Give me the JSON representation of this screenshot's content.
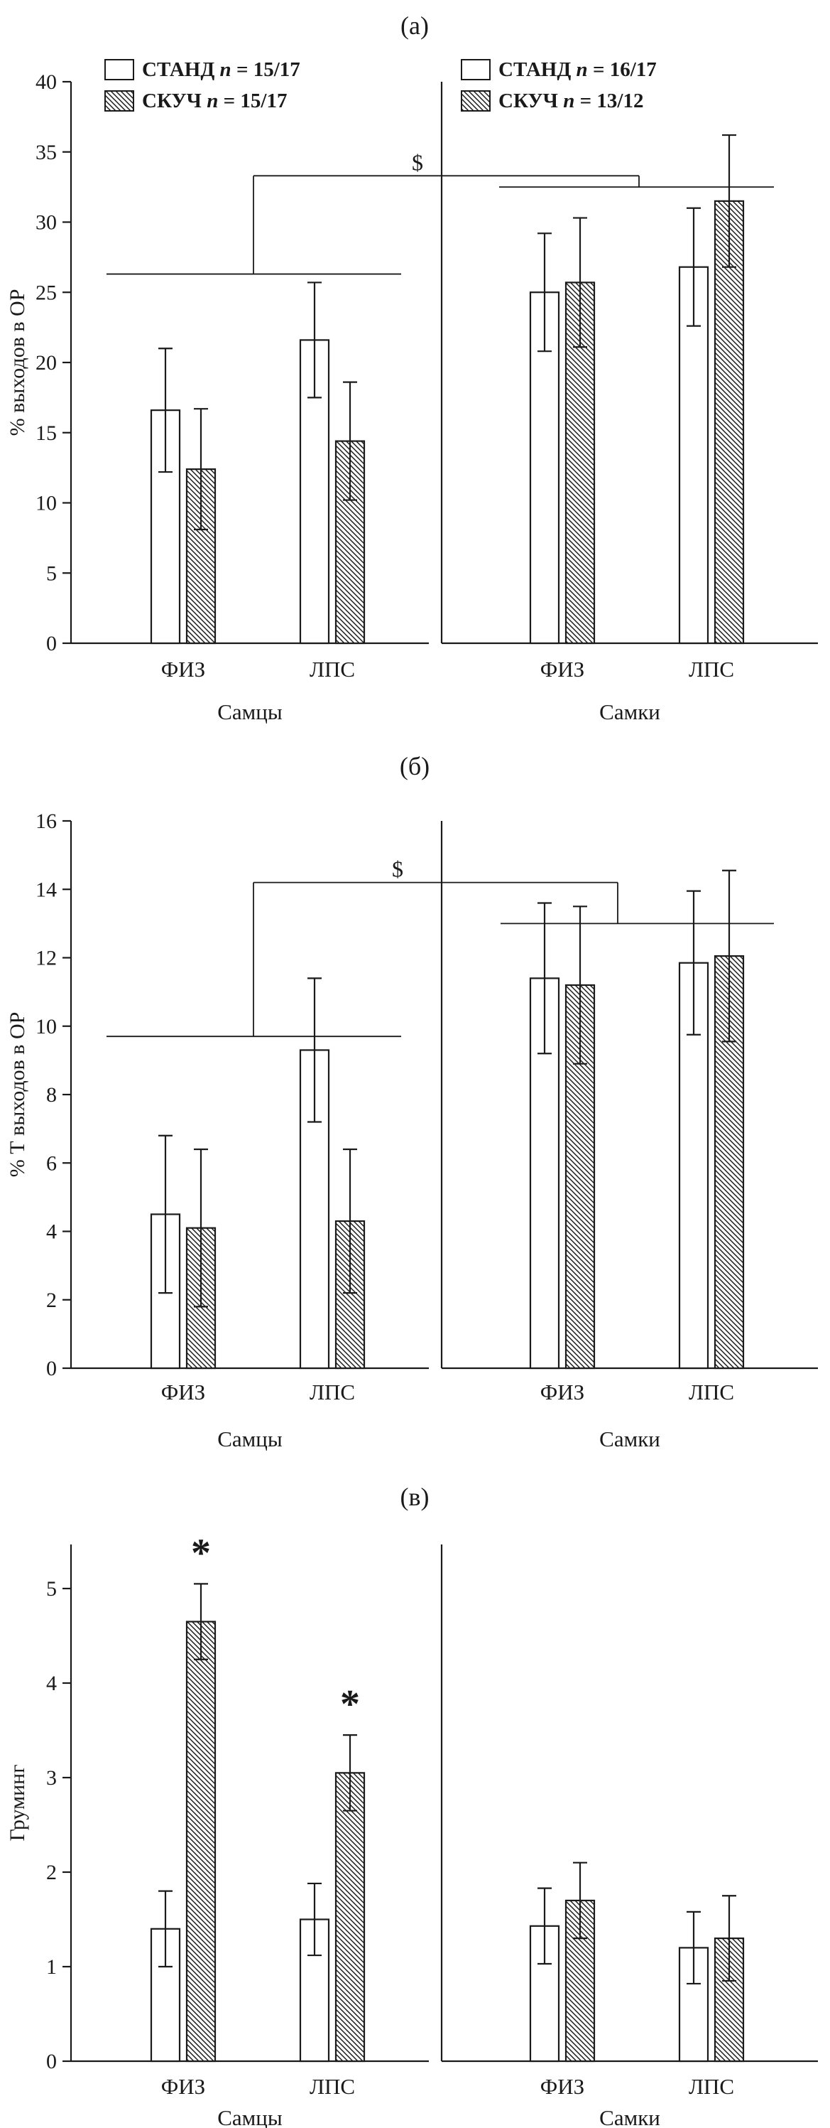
{
  "figure": {
    "background": "#ffffff",
    "ink": "#1a1a1a",
    "bar_fill_open": "#ffffff",
    "bar_fill_hatch": "diagonal-hatch"
  },
  "chart_data": [
    {
      "id": "a",
      "type": "bar",
      "title": "(а)",
      "ylabel": "% выходов в ОР",
      "ymax": 40,
      "ytick_step": 5,
      "grid": false,
      "series_names": [
        "СТАНД",
        "СКУЧ"
      ],
      "legends": [
        [
          {
            "series": "СТАНД",
            "swatch": "open",
            "n": "15/17"
          },
          {
            "series": "СКУЧ",
            "swatch": "hatch",
            "n": "15/17"
          }
        ],
        [
          {
            "series": "СТАНД",
            "swatch": "open",
            "n": "16/17"
          },
          {
            "series": "СКУЧ",
            "swatch": "hatch",
            "n": "13/12"
          }
        ]
      ],
      "subpanels": [
        {
          "label": "Самцы",
          "groups": [
            {
              "label": "ФИЗ",
              "bars": [
                {
                  "series": "СТАНД",
                  "value": 16.6,
                  "err": 4.4
                },
                {
                  "series": "СКУЧ",
                  "value": 12.4,
                  "err": 4.3
                }
              ]
            },
            {
              "label": "ЛПС",
              "bars": [
                {
                  "series": "СТАНД",
                  "value": 21.6,
                  "err": 4.1
                },
                {
                  "series": "СКУЧ",
                  "value": 14.4,
                  "err": 4.2
                }
              ]
            }
          ]
        },
        {
          "label": "Самки",
          "groups": [
            {
              "label": "ФИЗ",
              "bars": [
                {
                  "series": "СТАНД",
                  "value": 25.0,
                  "err": 4.2
                },
                {
                  "series": "СКУЧ",
                  "value": 25.7,
                  "err": 4.6
                }
              ]
            },
            {
              "label": "ЛПС",
              "bars": [
                {
                  "series": "СТАНД",
                  "value": 26.8,
                  "err": 4.2
                },
                {
                  "series": "СКУЧ",
                  "value": 31.5,
                  "err": 4.7
                }
              ]
            }
          ]
        }
      ],
      "significance": {
        "symbol": "$",
        "left_line_y": 26.3,
        "right_line_y": 32.5,
        "top_line_y": 33.3
      }
    },
    {
      "id": "b",
      "type": "bar",
      "title": "(б)",
      "ylabel": "% Т выходов в ОР",
      "ymax": 16,
      "ytick_step": 2,
      "grid": false,
      "series_names": [
        "СТАНД",
        "СКУЧ"
      ],
      "legends": [],
      "subpanels": [
        {
          "label": "Самцы",
          "groups": [
            {
              "label": "ФИЗ",
              "bars": [
                {
                  "series": "СТАНД",
                  "value": 4.5,
                  "err": 2.3
                },
                {
                  "series": "СКУЧ",
                  "value": 4.1,
                  "err": 2.3
                }
              ]
            },
            {
              "label": "ЛПС",
              "bars": [
                {
                  "series": "СТАНД",
                  "value": 9.3,
                  "err": 2.1
                },
                {
                  "series": "СКУЧ",
                  "value": 4.3,
                  "err": 2.1
                }
              ]
            }
          ]
        },
        {
          "label": "Самки",
          "groups": [
            {
              "label": "ФИЗ",
              "bars": [
                {
                  "series": "СТАНД",
                  "value": 11.4,
                  "err": 2.2
                },
                {
                  "series": "СКУЧ",
                  "value": 11.2,
                  "err": 2.3
                }
              ]
            },
            {
              "label": "ЛПС",
              "bars": [
                {
                  "series": "СТАНД",
                  "value": 11.85,
                  "err": 2.1
                },
                {
                  "series": "СКУЧ",
                  "value": 12.05,
                  "err": 2.5
                }
              ]
            }
          ]
        }
      ],
      "significance": {
        "symbol": "$",
        "left_line_y": 9.7,
        "right_line_y": 13.0,
        "top_line_y": 14.2
      }
    },
    {
      "id": "v",
      "type": "bar",
      "title": "(в)",
      "ylabel": "Груминг",
      "ymax": 5,
      "ytick_step": 1,
      "grid": false,
      "series_names": [
        "СТАНД",
        "СКУЧ"
      ],
      "legends": [],
      "subpanels": [
        {
          "label": "Самцы",
          "groups": [
            {
              "label": "ФИЗ",
              "bars": [
                {
                  "series": "СТАНД",
                  "value": 1.4,
                  "err": 0.4
                },
                {
                  "series": "СКУЧ",
                  "value": 4.65,
                  "err": 0.4,
                  "sig": "*"
                }
              ]
            },
            {
              "label": "ЛПС",
              "bars": [
                {
                  "series": "СТАНД",
                  "value": 1.5,
                  "err": 0.38
                },
                {
                  "series": "СКУЧ",
                  "value": 3.05,
                  "err": 0.4,
                  "sig": "*"
                }
              ]
            }
          ]
        },
        {
          "label": "Самки",
          "groups": [
            {
              "label": "ФИЗ",
              "bars": [
                {
                  "series": "СТАНД",
                  "value": 1.43,
                  "err": 0.4
                },
                {
                  "series": "СКУЧ",
                  "value": 1.7,
                  "err": 0.4
                }
              ]
            },
            {
              "label": "ЛПС",
              "bars": [
                {
                  "series": "СТАНД",
                  "value": 1.2,
                  "err": 0.38
                },
                {
                  "series": "СКУЧ",
                  "value": 1.3,
                  "err": 0.45
                }
              ]
            }
          ]
        }
      ],
      "significance": null
    }
  ]
}
